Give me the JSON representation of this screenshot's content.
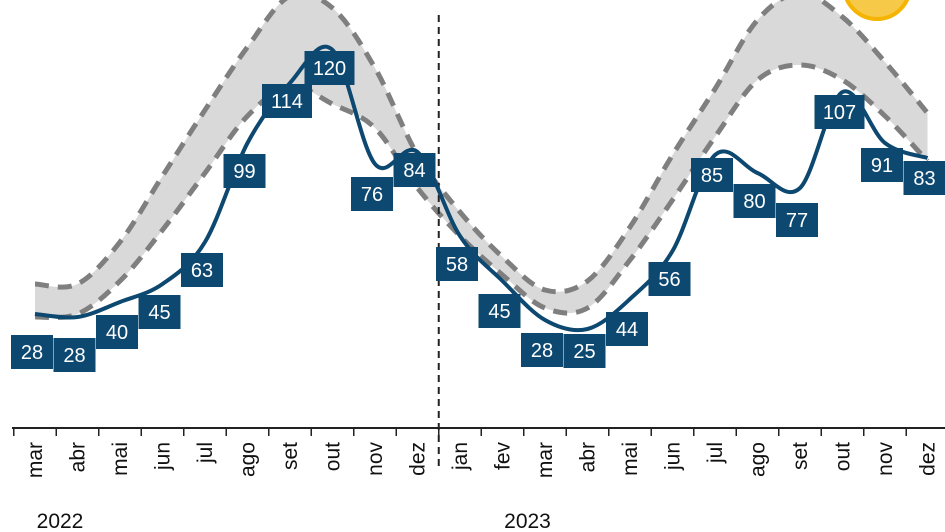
{
  "chart_data": {
    "type": "line",
    "title": "",
    "xlabel": "",
    "ylabel": "",
    "ylim": [
      0,
      140
    ],
    "grid": false,
    "x": [
      "mar",
      "abr",
      "mai",
      "jun",
      "jul",
      "ago",
      "set",
      "out",
      "nov",
      "dez",
      "jan",
      "fev",
      "mar",
      "abr",
      "mai",
      "jun",
      "jul",
      "ago",
      "set",
      "out",
      "nov",
      "dez"
    ],
    "year_labels": [
      {
        "label": "2022",
        "at_index": 0
      },
      {
        "label": "2023",
        "at_index": 11
      }
    ],
    "divider_after_index": 9,
    "series": [
      {
        "role": "actual",
        "values": [
          28,
          28,
          40,
          45,
          63,
          99,
          114,
          120,
          76,
          84,
          58,
          45,
          28,
          25,
          44,
          56,
          85,
          80,
          77,
          107,
          91,
          83
        ],
        "curve_values": [
          38,
          37,
          42,
          48,
          62,
          95,
          115,
          126,
          88,
          92,
          64,
          49,
          36,
          33,
          43,
          59,
          91,
          85,
          80,
          112,
          95,
          90
        ],
        "color": "#0d4870",
        "labels": [
          "28",
          "28",
          "40",
          "45",
          "63",
          "99",
          "114",
          "120",
          "76",
          "84",
          "58",
          "45",
          "28",
          "25",
          "44",
          "56",
          "85",
          "80",
          "77",
          "107",
          "91",
          "83"
        ]
      },
      {
        "role": "band-upper",
        "values": [
          48,
          48,
          62,
          84,
          106,
          127,
          144,
          140,
          120,
          91,
          72,
          57,
          46,
          49,
          67,
          91,
          113,
          136,
          145,
          137,
          122,
          105
        ],
        "color": "#7f7f7f",
        "dashed": true
      },
      {
        "role": "band-lower",
        "values": [
          37,
          38,
          49,
          66,
          85,
          104,
          114,
          108,
          100,
          80,
          64,
          51,
          40,
          40,
          56,
          76,
          97,
          116,
          121,
          116,
          104,
          89
        ],
        "color": "#7f7f7f",
        "dashed": true
      }
    ],
    "band_fill": "#d9d9d9"
  }
}
